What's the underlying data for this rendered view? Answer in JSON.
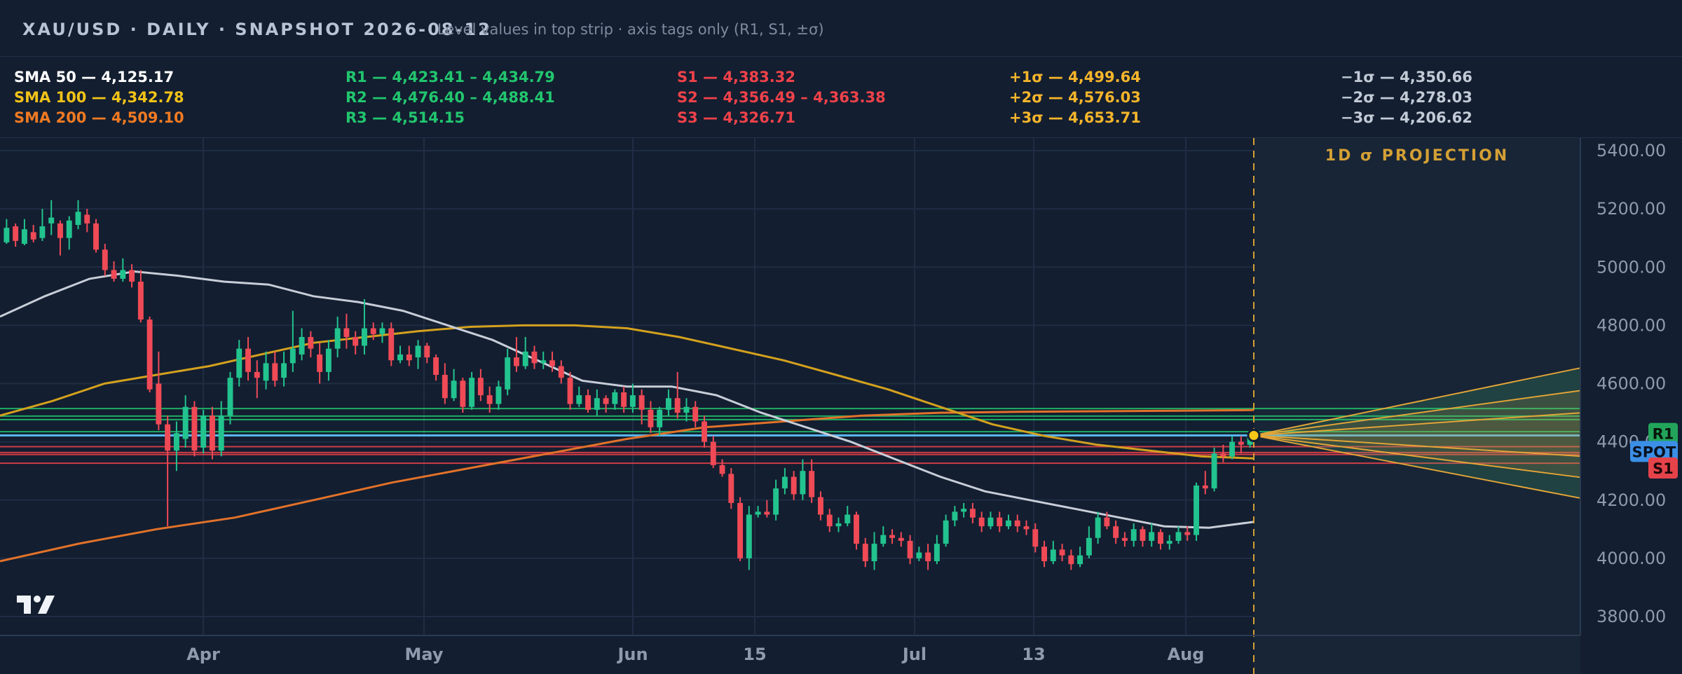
{
  "header": {
    "title": "XAU/USD · DAILY · SNAPSHOT 2026-08-12",
    "note": "Level values in top strip · axis tags only (R1, S1, ±σ)"
  },
  "levels": {
    "sma": [
      {
        "text": "SMA 50 — 4,125.17",
        "color": "#ffffff"
      },
      {
        "text": "SMA 100 — 4,342.78",
        "color": "#f2c318"
      },
      {
        "text": "SMA 200 — 4,509.10",
        "color": "#f07a22"
      }
    ],
    "resistance": [
      {
        "text": "R1 — 4,423.41 – 4,434.79",
        "color": "#22c66e"
      },
      {
        "text": "R2 — 4,476.40 – 4,488.41",
        "color": "#22c66e"
      },
      {
        "text": "R3 — 4,514.15",
        "color": "#22c66e"
      }
    ],
    "support": [
      {
        "text": "S1 — 4,383.32",
        "color": "#f0424a"
      },
      {
        "text": "S2 — 4,356.49 – 4,363.38",
        "color": "#f0424a"
      },
      {
        "text": "S3 — 4,326.71",
        "color": "#f0424a"
      }
    ],
    "sigma_up": [
      {
        "text": "+1σ — 4,499.64",
        "color": "#f5b52b"
      },
      {
        "text": "+2σ — 4,576.03",
        "color": "#f5b52b"
      },
      {
        "text": "+3σ — 4,653.71",
        "color": "#f5b52b"
      }
    ],
    "sigma_down": [
      {
        "text": "−1σ — 4,350.66",
        "color": "#c2cad6"
      },
      {
        "text": "−2σ — 4,278.03",
        "color": "#c2cad6"
      },
      {
        "text": "−3σ — 4,206.62",
        "color": "#c2cad6"
      }
    ]
  },
  "projection_label": "1D σ PROJECTION",
  "axis_tags": [
    {
      "label": "R1",
      "value": 4429,
      "color": "#22a55a",
      "text_color": "#08150c"
    },
    {
      "label": "SPOT",
      "value": 4367,
      "color": "#3b8fe6",
      "text_color": "#0a1220"
    },
    {
      "label": "S1",
      "value": 4310,
      "color": "#e5424a",
      "text_color": "#1a0808"
    }
  ],
  "colors": {
    "up": "#22c38e",
    "down": "#ef4a56",
    "sma50": "#c8ced8",
    "sma100": "#d4a11e",
    "sma200": "#e2722a",
    "resistance": "#22c66e",
    "support": "#f0424a",
    "spot": "#5ab4f0",
    "sigma": "#e8a838"
  },
  "chart_data": {
    "type": "candlestick",
    "title": "XAU/USD · DAILY · SNAPSHOT 2026-08-12",
    "x_ticks": [
      "Apr",
      "May",
      "Jun",
      "15",
      "Jul",
      "13",
      "Aug"
    ],
    "y_ticks": [
      "5400.00",
      "5200.00",
      "5000.00",
      "4800.00",
      "4600.00",
      "4400.00",
      "4200.00",
      "4000.00",
      "3800.00"
    ],
    "ylim": [
      3740,
      5440
    ],
    "spot": 4422,
    "sma50": [
      4830,
      4900,
      4960,
      4985,
      4970,
      4950,
      4940,
      4900,
      4880,
      4850,
      4800,
      4750,
      4680,
      4610,
      4590,
      4590,
      4560,
      4500,
      4450,
      4400,
      4340,
      4280,
      4230,
      4200,
      4170,
      4140,
      4110,
      4105,
      4125
    ],
    "sma100": [
      4490,
      4540,
      4600,
      4630,
      4660,
      4700,
      4740,
      4760,
      4780,
      4795,
      4800,
      4800,
      4790,
      4760,
      4720,
      4680,
      4630,
      4580,
      4520,
      4460,
      4420,
      4390,
      4370,
      4350,
      4343
    ],
    "sma200": [
      3990,
      4050,
      4100,
      4140,
      4200,
      4260,
      4310,
      4360,
      4410,
      4450,
      4470,
      4490,
      4500,
      4503,
      4505,
      4507,
      4509
    ],
    "resistance_levels": [
      4423.41,
      4434.79,
      4476.4,
      4488.41,
      4514.15
    ],
    "support_levels": [
      4383.32,
      4356.49,
      4363.38,
      4326.71
    ],
    "sigma_projection": {
      "spot": 4422,
      "plus": [
        4499.64,
        4576.03,
        4653.71
      ],
      "minus": [
        4350.66,
        4278.03,
        4206.62
      ]
    },
    "candles": [
      [
        5085,
        5135,
        5165,
        5080
      ],
      [
        5140,
        5090,
        5150,
        5070
      ],
      [
        5080,
        5130,
        5165,
        5075
      ],
      [
        5120,
        5095,
        5145,
        5085
      ],
      [
        5100,
        5140,
        5200,
        5090
      ],
      [
        5150,
        5170,
        5230,
        5110
      ],
      [
        5150,
        5100,
        5160,
        5040
      ],
      [
        5100,
        5160,
        5175,
        5060
      ],
      [
        5145,
        5190,
        5230,
        5130
      ],
      [
        5180,
        5150,
        5200,
        5120
      ],
      [
        5150,
        5060,
        5165,
        5050
      ],
      [
        5060,
        4990,
        5080,
        4970
      ],
      [
        4990,
        4960,
        5020,
        4950
      ],
      [
        4960,
        4990,
        5030,
        4950
      ],
      [
        4990,
        4950,
        5010,
        4930
      ],
      [
        4950,
        4820,
        4990,
        4810
      ],
      [
        4820,
        4580,
        4830,
        4570
      ],
      [
        4600,
        4460,
        4710,
        4440
      ],
      [
        4460,
        4370,
        4490,
        4110
      ],
      [
        4370,
        4430,
        4470,
        4300
      ],
      [
        4410,
        4520,
        4560,
        4380
      ],
      [
        4520,
        4370,
        4540,
        4350
      ],
      [
        4380,
        4490,
        4510,
        4360
      ],
      [
        4490,
        4370,
        4520,
        4340
      ],
      [
        4370,
        4490,
        4540,
        4350
      ],
      [
        4490,
        4620,
        4640,
        4460
      ],
      [
        4620,
        4720,
        4750,
        4590
      ],
      [
        4720,
        4640,
        4760,
        4610
      ],
      [
        4640,
        4620,
        4680,
        4550
      ],
      [
        4610,
        4670,
        4710,
        4580
      ],
      [
        4670,
        4610,
        4710,
        4590
      ],
      [
        4620,
        4670,
        4710,
        4590
      ],
      [
        4670,
        4720,
        4850,
        4640
      ],
      [
        4700,
        4760,
        4790,
        4680
      ],
      [
        4760,
        4720,
        4780,
        4690
      ],
      [
        4700,
        4640,
        4740,
        4600
      ],
      [
        4640,
        4720,
        4750,
        4610
      ],
      [
        4720,
        4790,
        4830,
        4690
      ],
      [
        4790,
        4760,
        4840,
        4720
      ],
      [
        4760,
        4730,
        4780,
        4700
      ],
      [
        4730,
        4790,
        4890,
        4700
      ],
      [
        4790,
        4770,
        4810,
        4750
      ],
      [
        4770,
        4790,
        4810,
        4740
      ],
      [
        4790,
        4680,
        4810,
        4660
      ],
      [
        4680,
        4700,
        4730,
        4670
      ],
      [
        4700,
        4680,
        4730,
        4660
      ],
      [
        4690,
        4730,
        4750,
        4650
      ],
      [
        4730,
        4690,
        4740,
        4670
      ],
      [
        4690,
        4630,
        4700,
        4610
      ],
      [
        4630,
        4550,
        4670,
        4530
      ],
      [
        4550,
        4610,
        4650,
        4540
      ],
      [
        4610,
        4520,
        4620,
        4500
      ],
      [
        4520,
        4620,
        4640,
        4510
      ],
      [
        4620,
        4560,
        4650,
        4540
      ],
      [
        4560,
        4530,
        4590,
        4500
      ],
      [
        4530,
        4590,
        4610,
        4510
      ],
      [
        4580,
        4690,
        4720,
        4560
      ],
      [
        4690,
        4660,
        4760,
        4640
      ],
      [
        4660,
        4710,
        4760,
        4650
      ],
      [
        4710,
        4670,
        4730,
        4650
      ],
      [
        4670,
        4680,
        4710,
        4650
      ],
      [
        4680,
        4660,
        4710,
        4640
      ],
      [
        4660,
        4620,
        4680,
        4600
      ],
      [
        4620,
        4530,
        4640,
        4510
      ],
      [
        4530,
        4560,
        4590,
        4520
      ],
      [
        4560,
        4510,
        4580,
        4500
      ],
      [
        4510,
        4550,
        4580,
        4490
      ],
      [
        4550,
        4530,
        4560,
        4500
      ],
      [
        4530,
        4570,
        4580,
        4510
      ],
      [
        4570,
        4520,
        4590,
        4500
      ],
      [
        4520,
        4560,
        4600,
        4500
      ],
      [
        4560,
        4510,
        4580,
        4460
      ],
      [
        4510,
        4450,
        4540,
        4430
      ],
      [
        4450,
        4510,
        4520,
        4420
      ],
      [
        4510,
        4550,
        4580,
        4490
      ],
      [
        4550,
        4500,
        4640,
        4480
      ],
      [
        4500,
        4520,
        4550,
        4470
      ],
      [
        4520,
        4470,
        4540,
        4450
      ],
      [
        4470,
        4400,
        4490,
        4380
      ],
      [
        4400,
        4320,
        4420,
        4310
      ],
      [
        4320,
        4290,
        4340,
        4280
      ],
      [
        4290,
        4190,
        4310,
        4170
      ],
      [
        4190,
        4000,
        4210,
        3990
      ],
      [
        4000,
        4150,
        4180,
        3960
      ],
      [
        4150,
        4160,
        4180,
        4140
      ],
      [
        4160,
        4150,
        4200,
        4140
      ],
      [
        4150,
        4240,
        4270,
        4130
      ],
      [
        4240,
        4280,
        4310,
        4220
      ],
      [
        4280,
        4220,
        4300,
        4200
      ],
      [
        4220,
        4300,
        4340,
        4200
      ],
      [
        4300,
        4210,
        4340,
        4190
      ],
      [
        4210,
        4150,
        4230,
        4130
      ],
      [
        4150,
        4110,
        4170,
        4090
      ],
      [
        4110,
        4120,
        4140,
        4090
      ],
      [
        4120,
        4150,
        4180,
        4110
      ],
      [
        4150,
        4050,
        4160,
        4030
      ],
      [
        4050,
        3990,
        4070,
        3970
      ],
      [
        3990,
        4050,
        4090,
        3960
      ],
      [
        4050,
        4080,
        4110,
        4040
      ],
      [
        4080,
        4070,
        4100,
        4050
      ],
      [
        4070,
        4060,
        4090,
        4040
      ],
      [
        4060,
        4000,
        4080,
        3980
      ],
      [
        4000,
        4020,
        4040,
        3990
      ],
      [
        4020,
        3990,
        4050,
        3960
      ],
      [
        3990,
        4050,
        4080,
        3980
      ],
      [
        4050,
        4130,
        4150,
        4040
      ],
      [
        4130,
        4160,
        4180,
        4110
      ],
      [
        4160,
        4170,
        4190,
        4140
      ],
      [
        4170,
        4140,
        4190,
        4120
      ],
      [
        4140,
        4110,
        4160,
        4090
      ],
      [
        4110,
        4140,
        4160,
        4100
      ],
      [
        4140,
        4110,
        4160,
        4090
      ],
      [
        4110,
        4130,
        4150,
        4100
      ],
      [
        4130,
        4110,
        4150,
        4090
      ],
      [
        4110,
        4100,
        4130,
        4080
      ],
      [
        4100,
        4040,
        4120,
        4020
      ],
      [
        4040,
        3990,
        4060,
        3970
      ],
      [
        3990,
        4030,
        4060,
        3980
      ],
      [
        4030,
        4010,
        4050,
        3990
      ],
      [
        4010,
        3980,
        4030,
        3960
      ],
      [
        3980,
        4010,
        4040,
        3970
      ],
      [
        4010,
        4070,
        4110,
        4000
      ],
      [
        4070,
        4140,
        4160,
        4050
      ],
      [
        4140,
        4110,
        4160,
        4100
      ],
      [
        4110,
        4070,
        4130,
        4050
      ],
      [
        4070,
        4060,
        4090,
        4040
      ],
      [
        4060,
        4100,
        4120,
        4040
      ],
      [
        4100,
        4060,
        4110,
        4040
      ],
      [
        4060,
        4090,
        4120,
        4040
      ],
      [
        4090,
        4050,
        4100,
        4030
      ],
      [
        4050,
        4060,
        4080,
        4030
      ],
      [
        4060,
        4090,
        4110,
        4050
      ],
      [
        4090,
        4080,
        4110,
        4060
      ],
      [
        4080,
        4250,
        4260,
        4060
      ],
      [
        4250,
        4240,
        4300,
        4220
      ],
      [
        4240,
        4360,
        4380,
        4230
      ],
      [
        4360,
        4350,
        4390,
        4330
      ],
      [
        4350,
        4400,
        4420,
        4340
      ],
      [
        4400,
        4390,
        4420,
        4360
      ],
      [
        4390,
        4420,
        4440,
        4380
      ]
    ]
  }
}
